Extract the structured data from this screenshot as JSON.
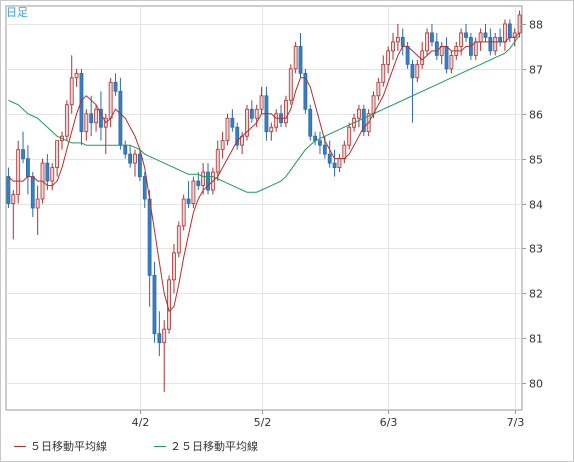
{
  "period_label": "日足",
  "legend": [
    {
      "label": "５日移動平均線",
      "color": "#b03030"
    },
    {
      "label": "２５日移動平均線",
      "color": "#1e9a5a"
    }
  ],
  "colors": {
    "up": "#e8d8d8",
    "up_edge": "#b03030",
    "down": "#3a7fc0",
    "down_edge": "#2d6aa8",
    "grid": "#e4e4e4",
    "axis": "#999999"
  },
  "chart_data": {
    "type": "candlestick",
    "title": "",
    "xlabel": "",
    "ylabel": "",
    "ylim": [
      79.4,
      88.4
    ],
    "grid": true,
    "legend_position": "bottom",
    "y_ticks": [
      80,
      81,
      82,
      83,
      84,
      85,
      86,
      87,
      88
    ],
    "x_ticks": [
      {
        "label": "4/2",
        "index": 27
      },
      {
        "label": "5/2",
        "index": 52
      },
      {
        "label": "6/3",
        "index": 78
      },
      {
        "label": "7/3",
        "index": 104
      }
    ],
    "x_count": 106,
    "ohlc": [
      [
        84.6,
        84.8,
        83.9,
        84.0
      ],
      [
        84.0,
        84.3,
        83.2,
        84.2
      ],
      [
        84.2,
        85.4,
        84.0,
        85.2
      ],
      [
        85.2,
        85.6,
        84.9,
        85.0
      ],
      [
        85.0,
        85.3,
        84.2,
        84.6
      ],
      [
        84.6,
        84.7,
        83.7,
        83.9
      ],
      [
        83.9,
        84.4,
        83.3,
        84.1
      ],
      [
        84.1,
        85.0,
        84.0,
        84.9
      ],
      [
        84.9,
        85.1,
        84.3,
        84.5
      ],
      [
        84.5,
        84.9,
        84.3,
        84.8
      ],
      [
        84.8,
        85.4,
        84.6,
        85.4
      ],
      [
        85.4,
        85.6,
        85.2,
        85.5
      ],
      [
        85.5,
        86.3,
        85.4,
        86.2
      ],
      [
        86.2,
        87.3,
        86.0,
        86.8
      ],
      [
        86.8,
        87.0,
        86.6,
        86.9
      ],
      [
        86.9,
        87.0,
        85.3,
        85.6
      ],
      [
        85.6,
        86.1,
        85.4,
        86.0
      ],
      [
        86.0,
        86.4,
        85.5,
        85.8
      ],
      [
        85.8,
        86.2,
        85.6,
        86.1
      ],
      [
        86.1,
        86.5,
        85.4,
        85.7
      ],
      [
        85.7,
        86.0,
        85.1,
        85.9
      ],
      [
        85.9,
        86.8,
        85.7,
        86.7
      ],
      [
        86.7,
        86.9,
        86.4,
        86.5
      ],
      [
        86.5,
        86.8,
        85.2,
        85.3
      ],
      [
        85.3,
        85.4,
        85.0,
        85.1
      ],
      [
        85.1,
        85.3,
        84.8,
        84.9
      ],
      [
        84.9,
        85.2,
        84.6,
        85.1
      ],
      [
        85.1,
        85.2,
        84.5,
        84.6
      ],
      [
        84.6,
        84.7,
        83.9,
        84.1
      ],
      [
        84.1,
        84.3,
        81.7,
        82.4
      ],
      [
        82.4,
        82.7,
        80.9,
        81.1
      ],
      [
        81.1,
        81.6,
        80.6,
        80.9
      ],
      [
        80.9,
        81.4,
        79.8,
        81.2
      ],
      [
        81.2,
        82.4,
        81.1,
        82.3
      ],
      [
        82.3,
        83.1,
        82.0,
        82.9
      ],
      [
        82.9,
        83.6,
        82.8,
        83.5
      ],
      [
        83.5,
        84.2,
        83.4,
        84.1
      ],
      [
        84.1,
        84.5,
        83.9,
        84.0
      ],
      [
        84.0,
        84.6,
        83.9,
        84.5
      ],
      [
        84.5,
        84.7,
        84.3,
        84.4
      ],
      [
        84.4,
        84.9,
        84.2,
        84.7
      ],
      [
        84.7,
        84.9,
        84.2,
        84.3
      ],
      [
        84.3,
        84.8,
        84.2,
        84.7
      ],
      [
        84.7,
        85.4,
        84.5,
        85.2
      ],
      [
        85.2,
        85.6,
        85.0,
        85.4
      ],
      [
        85.4,
        86.0,
        85.3,
        85.9
      ],
      [
        85.9,
        86.1,
        85.6,
        85.7
      ],
      [
        85.7,
        85.8,
        85.2,
        85.3
      ],
      [
        85.3,
        85.6,
        85.1,
        85.5
      ],
      [
        85.5,
        86.2,
        85.4,
        86.1
      ],
      [
        86.1,
        86.3,
        85.8,
        85.9
      ],
      [
        85.9,
        86.2,
        85.7,
        86.1
      ],
      [
        86.1,
        86.6,
        86.0,
        86.4
      ],
      [
        86.4,
        86.6,
        85.4,
        85.6
      ],
      [
        85.6,
        85.8,
        85.4,
        85.7
      ],
      [
        85.7,
        86.1,
        85.6,
        86.0
      ],
      [
        86.0,
        86.2,
        85.7,
        85.8
      ],
      [
        85.8,
        86.4,
        85.7,
        86.3
      ],
      [
        86.3,
        87.1,
        86.2,
        87.0
      ],
      [
        87.0,
        87.6,
        86.9,
        87.5
      ],
      [
        87.5,
        87.8,
        86.8,
        86.9
      ],
      [
        86.9,
        87.0,
        86.0,
        86.1
      ],
      [
        86.1,
        86.2,
        85.4,
        85.5
      ],
      [
        85.5,
        85.6,
        85.3,
        85.4
      ],
      [
        85.4,
        85.6,
        85.1,
        85.3
      ],
      [
        85.3,
        85.5,
        85.0,
        85.1
      ],
      [
        85.1,
        85.4,
        84.8,
        84.9
      ],
      [
        84.9,
        85.2,
        84.6,
        84.8
      ],
      [
        84.8,
        85.1,
        84.7,
        85.0
      ],
      [
        85.0,
        85.4,
        84.9,
        85.3
      ],
      [
        85.3,
        85.8,
        85.2,
        85.7
      ],
      [
        85.7,
        86.0,
        85.6,
        85.9
      ],
      [
        85.9,
        86.2,
        85.7,
        86.1
      ],
      [
        86.1,
        86.2,
        85.5,
        85.6
      ],
      [
        85.6,
        86.1,
        85.5,
        86.0
      ],
      [
        86.0,
        86.5,
        85.9,
        86.4
      ],
      [
        86.4,
        86.8,
        86.3,
        86.7
      ],
      [
        86.7,
        87.3,
        86.6,
        87.1
      ],
      [
        87.1,
        87.5,
        86.9,
        87.4
      ],
      [
        87.4,
        87.8,
        87.2,
        87.6
      ],
      [
        87.6,
        88.0,
        87.4,
        87.7
      ],
      [
        87.7,
        87.9,
        87.3,
        87.5
      ],
      [
        87.5,
        87.6,
        87.0,
        87.1
      ],
      [
        87.1,
        87.2,
        85.8,
        86.8
      ],
      [
        86.8,
        87.2,
        86.7,
        87.1
      ],
      [
        87.1,
        87.6,
        87.0,
        87.4
      ],
      [
        87.4,
        87.9,
        87.3,
        87.8
      ],
      [
        87.8,
        88.0,
        87.5,
        87.6
      ],
      [
        87.6,
        87.8,
        87.2,
        87.3
      ],
      [
        87.3,
        87.6,
        87.1,
        87.5
      ],
      [
        87.5,
        87.7,
        86.9,
        87.0
      ],
      [
        87.0,
        87.4,
        86.9,
        87.3
      ],
      [
        87.3,
        87.6,
        87.2,
        87.5
      ],
      [
        87.5,
        87.9,
        87.3,
        87.8
      ],
      [
        87.8,
        88.0,
        87.6,
        87.7
      ],
      [
        87.7,
        87.8,
        87.2,
        87.3
      ],
      [
        87.3,
        87.7,
        87.2,
        87.6
      ],
      [
        87.6,
        87.9,
        87.4,
        87.8
      ],
      [
        87.8,
        88.0,
        87.6,
        87.7
      ],
      [
        87.7,
        87.9,
        87.3,
        87.4
      ],
      [
        87.4,
        87.8,
        87.3,
        87.7
      ],
      [
        87.7,
        87.9,
        87.5,
        87.6
      ],
      [
        87.6,
        88.1,
        87.4,
        88.0
      ],
      [
        88.0,
        88.1,
        87.6,
        87.7
      ],
      [
        87.7,
        87.9,
        87.5,
        87.8
      ],
      [
        87.8,
        88.3,
        87.7,
        88.2
      ]
    ],
    "series": [
      {
        "name": "５日移動平均線",
        "values": [
          84.6,
          84.5,
          84.5,
          84.5,
          84.6,
          84.6,
          84.5,
          84.5,
          84.4,
          84.4,
          84.5,
          84.8,
          85.2,
          85.6,
          86.0,
          86.3,
          86.4,
          86.3,
          86.2,
          86.0,
          85.8,
          85.9,
          86.1,
          86.0,
          85.9,
          85.7,
          85.5,
          85.2,
          84.8,
          84.1,
          83.4,
          82.7,
          82.0,
          81.6,
          81.7,
          82.2,
          82.8,
          83.3,
          83.8,
          84.1,
          84.3,
          84.4,
          84.5,
          84.6,
          84.8,
          85.0,
          85.2,
          85.4,
          85.5,
          85.6,
          85.7,
          85.8,
          86.0,
          86.0,
          86.0,
          85.9,
          85.9,
          85.9,
          86.1,
          86.5,
          86.8,
          86.8,
          86.6,
          86.2,
          85.8,
          85.4,
          85.2,
          85.0,
          85.0,
          85.0,
          85.1,
          85.3,
          85.5,
          85.7,
          85.8,
          86.0,
          86.2,
          86.4,
          86.7,
          87.0,
          87.3,
          87.5,
          87.5,
          87.4,
          87.3,
          87.2,
          87.3,
          87.4,
          87.4,
          87.5,
          87.5,
          87.4,
          87.4,
          87.4,
          87.5,
          87.5,
          87.6,
          87.6,
          87.6,
          87.6,
          87.6,
          87.6,
          87.6,
          87.7,
          87.7,
          87.8
        ]
      },
      {
        "name": "２５日移動平均線",
        "values": [
          86.3,
          86.25,
          86.2,
          86.1,
          86.0,
          85.95,
          85.9,
          85.8,
          85.7,
          85.6,
          85.5,
          85.45,
          85.4,
          85.35,
          85.35,
          85.35,
          85.3,
          85.3,
          85.3,
          85.3,
          85.3,
          85.3,
          85.3,
          85.3,
          85.3,
          85.3,
          85.25,
          85.2,
          85.1,
          85.05,
          85.0,
          84.95,
          84.9,
          84.85,
          84.8,
          84.75,
          84.7,
          84.65,
          84.65,
          84.65,
          84.6,
          84.6,
          84.6,
          84.55,
          84.5,
          84.45,
          84.4,
          84.35,
          84.3,
          84.25,
          84.25,
          84.25,
          84.3,
          84.35,
          84.4,
          84.45,
          84.5,
          84.6,
          84.75,
          84.9,
          85.05,
          85.2,
          85.3,
          85.4,
          85.45,
          85.5,
          85.55,
          85.6,
          85.65,
          85.7,
          85.75,
          85.8,
          85.85,
          85.9,
          85.95,
          86.0,
          86.05,
          86.1,
          86.15,
          86.2,
          86.25,
          86.3,
          86.35,
          86.4,
          86.45,
          86.5,
          86.55,
          86.6,
          86.65,
          86.7,
          86.75,
          86.8,
          86.85,
          86.9,
          86.95,
          87.0,
          87.05,
          87.1,
          87.15,
          87.2,
          87.25,
          87.3,
          87.35,
          87.45,
          87.6,
          87.75
        ]
      }
    ]
  }
}
